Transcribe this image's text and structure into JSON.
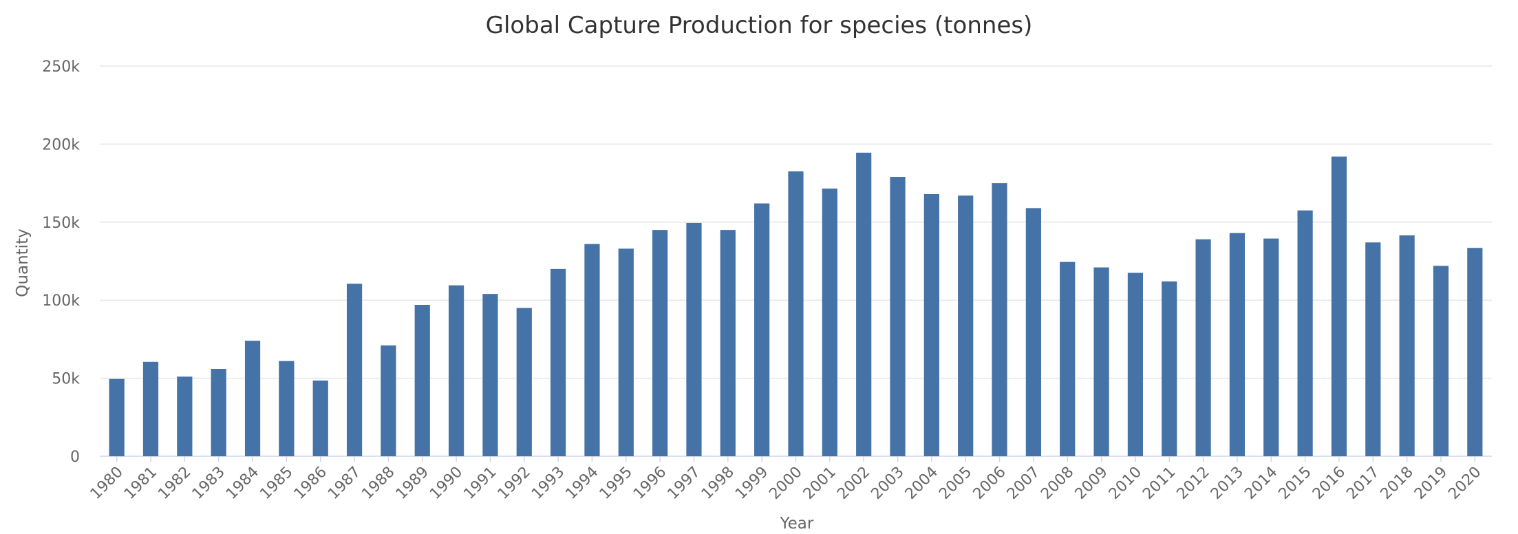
{
  "chart_data": {
    "type": "bar",
    "title": "Global Capture Production for species (tonnes)",
    "xlabel": "Year",
    "ylabel": "Quantity",
    "ylim": [
      0,
      250000
    ],
    "yticks": [
      0,
      50000,
      100000,
      150000,
      200000,
      250000
    ],
    "ytick_labels": [
      "0",
      "50k",
      "100k",
      "150k",
      "200k",
      "250k"
    ],
    "grid": true,
    "legend": "none",
    "bar_color": "#4572a7",
    "categories": [
      "1980",
      "1981",
      "1982",
      "1983",
      "1984",
      "1985",
      "1986",
      "1987",
      "1988",
      "1989",
      "1990",
      "1991",
      "1992",
      "1993",
      "1994",
      "1995",
      "1996",
      "1997",
      "1998",
      "1999",
      "2000",
      "2001",
      "2002",
      "2003",
      "2004",
      "2005",
      "2006",
      "2007",
      "2008",
      "2009",
      "2010",
      "2011",
      "2012",
      "2013",
      "2014",
      "2015",
      "2016",
      "2017",
      "2018",
      "2019",
      "2020"
    ],
    "values": [
      49500,
      60500,
      51000,
      56000,
      74000,
      61000,
      48500,
      110500,
      71000,
      97000,
      109500,
      104000,
      95000,
      120000,
      136000,
      133000,
      145000,
      149500,
      145000,
      162000,
      182500,
      171500,
      194500,
      179000,
      168000,
      167000,
      175000,
      159000,
      124500,
      121000,
      117500,
      112000,
      139000,
      143000,
      139500,
      157500,
      192000,
      137000,
      141500,
      122000,
      133500
    ]
  }
}
